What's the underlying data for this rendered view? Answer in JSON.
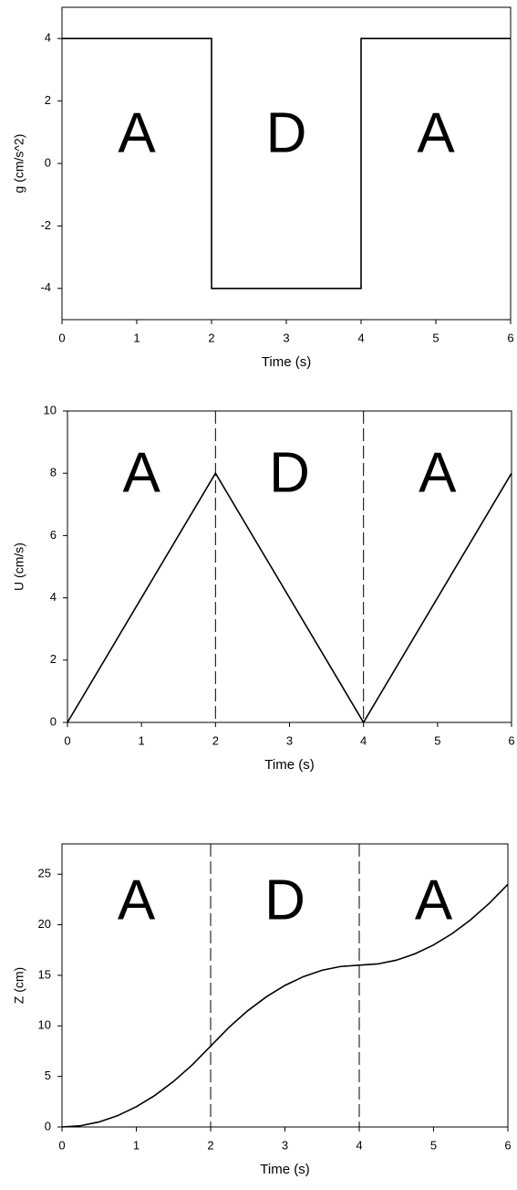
{
  "chart_data": [
    {
      "type": "line",
      "xlabel": "Time (s)",
      "ylabel": "g (cm/s^2)",
      "x": [
        0,
        2,
        2,
        4,
        4,
        6
      ],
      "values": [
        4,
        4,
        -4,
        -4,
        4,
        4
      ],
      "color": "#000000",
      "xlim": [
        0,
        6
      ],
      "xticks": [
        0,
        1,
        2,
        3,
        4,
        5,
        6
      ],
      "ylim": [
        -5,
        5
      ],
      "yticks": [
        -4,
        -2,
        0,
        2,
        4
      ],
      "annotations": [
        "A",
        "D",
        "A"
      ]
    },
    {
      "type": "line",
      "xlabel": "Time (s)",
      "ylabel": "U (cm/s)",
      "x": [
        0,
        2,
        4,
        6
      ],
      "values": [
        0,
        8,
        0,
        8
      ],
      "color": "#000000",
      "xlim": [
        0,
        6
      ],
      "xticks": [
        0,
        1,
        2,
        3,
        4,
        5,
        6
      ],
      "ylim": [
        0,
        10
      ],
      "yticks": [
        0,
        2,
        4,
        6,
        8,
        10
      ],
      "vlines": [
        2,
        4
      ],
      "annotations": [
        "A",
        "D",
        "A"
      ]
    },
    {
      "type": "line",
      "xlabel": "Time (s)",
      "ylabel": "Z (cm)",
      "x": [
        0,
        0.25,
        0.5,
        0.75,
        1,
        1.25,
        1.5,
        1.75,
        2,
        2.25,
        2.5,
        2.75,
        3,
        3.25,
        3.5,
        3.75,
        4,
        4.25,
        4.5,
        4.75,
        5,
        5.25,
        5.5,
        5.75,
        6
      ],
      "values": [
        0,
        0.125,
        0.5,
        1.125,
        2,
        3.125,
        4.5,
        6.125,
        8,
        9.875,
        11.5,
        12.875,
        14,
        14.875,
        15.5,
        15.875,
        16,
        16.125,
        16.5,
        17.125,
        18,
        19.125,
        20.5,
        22.125,
        24
      ],
      "color": "#000000",
      "xlim": [
        0,
        6
      ],
      "xticks": [
        0,
        1,
        2,
        3,
        4,
        5,
        6
      ],
      "ylim": [
        0,
        28
      ],
      "yticks": [
        0,
        5,
        10,
        15,
        20,
        25
      ],
      "vlines": [
        2,
        4
      ],
      "annotations": [
        "A",
        "D",
        "A"
      ]
    }
  ]
}
